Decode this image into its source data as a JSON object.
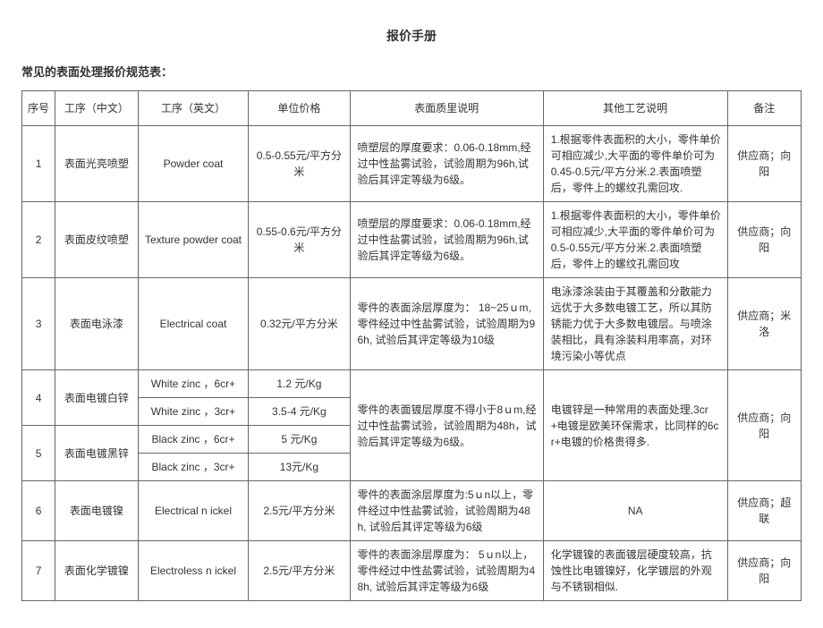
{
  "title": "报价手册",
  "subtitle": "常见的表面处理报价规范表：",
  "headers": {
    "seq": "序号",
    "cn": "工序（中文）",
    "en": "工序（英文）",
    "price": "单位价格",
    "quality": "表面质里说明",
    "other": "其他工艺说明",
    "note": "备注"
  },
  "rows": {
    "r1": {
      "seq": "1",
      "cn": "表面光亮喷塑",
      "en": "Powder coat",
      "price": "0.5-0.55元/平方分米",
      "quality": "喷塑层的厚度要求：0.06-0.18mm,经过中性盐雾试验，试验周期为96h,试验后其评定等级为6级。",
      "other": "1.根据零件表面积的大小，零件单价可相应减少,大平面的零件单价可为0.45-0.5元/平方分米.2.表面喷塑后，零件上的螺纹孔需回攻.",
      "note": "供应商；向阳"
    },
    "r2": {
      "seq": "2",
      "cn": "表面皮纹喷塑",
      "en": "Texture powder coat",
      "price": "0.55-0.6元/平方分米",
      "quality": "喷塑层的厚度要求：0.06-0.18mm,经过中性盐雾试验，试验周期为96h,试验后其评定等级为6级。",
      "other": "1.根据零件表面积的大小，零件单价可相应减少,大平面的零件单价可为0.5-0.55元/平方分米.2.表面喷塑后，零件上的螺纹孔需回攻",
      "note": "供应商；向阳"
    },
    "r3": {
      "seq": "3",
      "cn": "表面电泳漆",
      "en": "Electrical coat",
      "price": "0.32元/平方分米",
      "quality": "零件的表面涂层厚度为： 18~25ｕm,零件经过中性盐雾试验，试验周期为96h, 试验后其评定等级为10级",
      "other": "电泳漆涂装由于其覆盖和分散能力远优于大多数电镀工艺，所以其防锈能力优于大多数电镀层。与喷涂装相比，具有涂装料用率高，对环境污染小等优点",
      "note": "供应商；米洛"
    },
    "r4a": {
      "seq": "4",
      "cn": "表面电镀白锌",
      "en": "White zinc ，6cr+",
      "price": "1.2 元/Kg"
    },
    "r4b": {
      "en": "White zinc ，3cr+",
      "price": "3.5-4 元/Kg"
    },
    "r5a": {
      "seq": "5",
      "cn": "表面电镀黑锌",
      "en": "Black zinc ，6cr+",
      "price": "5 元/Kg"
    },
    "r5b": {
      "en": "Black zinc ，3cr+",
      "price": "13元/Kg"
    },
    "r45_quality": "零件的表面镀层厚度不得小于8ｕm,经过中性盐雾试验，试验周期为48h，试验后其评定等级为6级。",
    "r45_other": "电镀锌是一种常用的表面处理,3cr+电镀是欧美环保需求，比同样的6cr+电镀的价格贵得多.",
    "r45_note": "供应商；向阳",
    "r6": {
      "seq": "6",
      "cn": "表面电镀镍",
      "en": "Electrical n ickel",
      "price": "2.5元/平方分米",
      "quality": "零件的表面涂层厚度为:5ｕn以上，零件经过中性盐雾试验，试验周期为48h, 试验后其评定等级为6级",
      "other": "NA",
      "note": "供应商；超联"
    },
    "r7": {
      "seq": "7",
      "cn": "表面化学镀镍",
      "en": "Electroless n ickel",
      "price": "2.5元/平方分米",
      "quality": "零件的表面涂层厚度为： 5ｕn以上，零件经过中性盐雾试验，试验周期为48h, 试验后其评定等级为6级",
      "other": "化学镀镍的表面镀层硬度较高，抗蚀性比电镀镍好，化学镀层的外观与不锈钢相似.",
      "note": "供应商；向阳"
    }
  }
}
